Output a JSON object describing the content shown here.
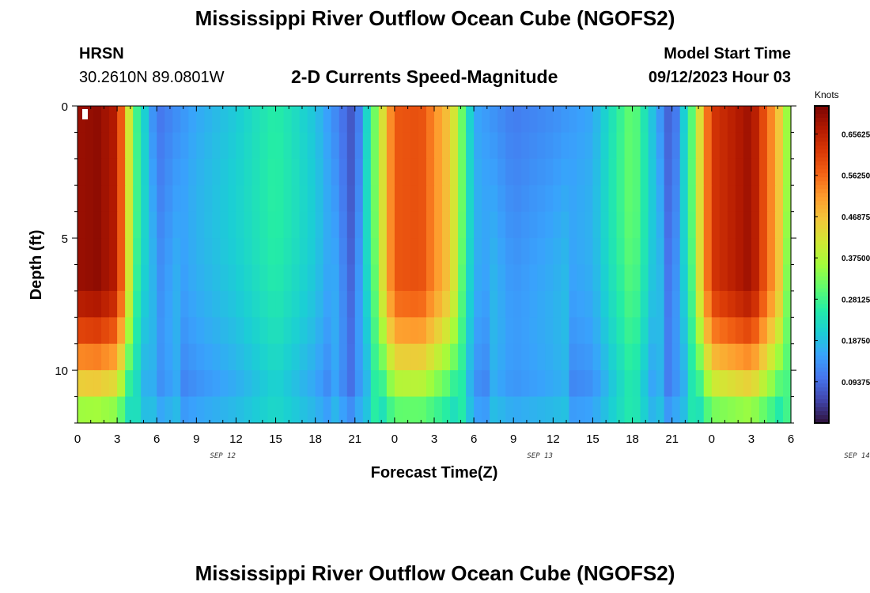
{
  "header": {
    "title": "Mississippi River Outflow Ocean Cube (NGOFS2)",
    "station": "HRSN",
    "coords": "30.2610N  89.0801W",
    "subtitle": "2-D Currents Speed-Magnitude",
    "model_label": "Model Start Time",
    "model_time": "09/12/2023 Hour 03",
    "footer_title": "Mississippi River Outflow Ocean Cube (NGOFS2)"
  },
  "chart_data": {
    "type": "heatmap",
    "title": "2-D Currents Speed-Magnitude",
    "xlabel": "Forecast Time(Z)",
    "ylabel": "Depth (ft)",
    "x_range_hours": [
      0,
      54
    ],
    "ylim": [
      0,
      12
    ],
    "x_tick_labels": [
      "0",
      "3",
      "6",
      "9",
      "12",
      "15",
      "18",
      "21",
      "0",
      "3",
      "6",
      "9",
      "12",
      "15",
      "18",
      "21",
      "0",
      "3",
      "6"
    ],
    "y_tick_labels": [
      "0",
      "5",
      "10"
    ],
    "date_labels": [
      "SEP 12",
      "SEP 13",
      "SEP 14"
    ],
    "colorbar": {
      "unit": "Knots",
      "min": 0,
      "max": 0.72,
      "labels": [
        "0.65625",
        "0.56250",
        "0.46875",
        "0.37500",
        "0.28125",
        "0.18750",
        "0.09375"
      ],
      "colors": [
        "#30123b",
        "#4145ab",
        "#4675ed",
        "#39a2fc",
        "#1bcfd4",
        "#24eca6",
        "#61fc6c",
        "#a4fc3b",
        "#d1e834",
        "#f3c63a",
        "#fe9b2d",
        "#f36315",
        "#d93806",
        "#b11901",
        "#7a0403"
      ]
    },
    "time_profile_knots": [
      {
        "hour": 0,
        "surface": 0.69
      },
      {
        "hour": 1.5,
        "surface": 0.7
      },
      {
        "hour": 3,
        "surface": 0.66
      },
      {
        "hour": 4.3,
        "surface": 0.3
      },
      {
        "hour": 6,
        "surface": 0.1
      },
      {
        "hour": 9,
        "surface": 0.16
      },
      {
        "hour": 12,
        "surface": 0.2
      },
      {
        "hour": 15,
        "surface": 0.26
      },
      {
        "hour": 18,
        "surface": 0.19
      },
      {
        "hour": 21,
        "surface": 0.06
      },
      {
        "hour": 22.5,
        "surface": 0.32
      },
      {
        "hour": 24,
        "surface": 0.58
      },
      {
        "hour": 26,
        "surface": 0.59
      },
      {
        "hour": 28.3,
        "surface": 0.45
      },
      {
        "hour": 30,
        "surface": 0.16
      },
      {
        "hour": 33,
        "surface": 0.11
      },
      {
        "hour": 36,
        "surface": 0.13
      },
      {
        "hour": 39,
        "surface": 0.16
      },
      {
        "hour": 42,
        "surface": 0.32
      },
      {
        "hour": 45,
        "surface": 0.06
      },
      {
        "hour": 46.5,
        "surface": 0.3
      },
      {
        "hour": 48,
        "surface": 0.62
      },
      {
        "hour": 51,
        "surface": 0.69
      },
      {
        "hour": 53,
        "surface": 0.48
      },
      {
        "hour": 54,
        "surface": 0.3
      }
    ]
  }
}
